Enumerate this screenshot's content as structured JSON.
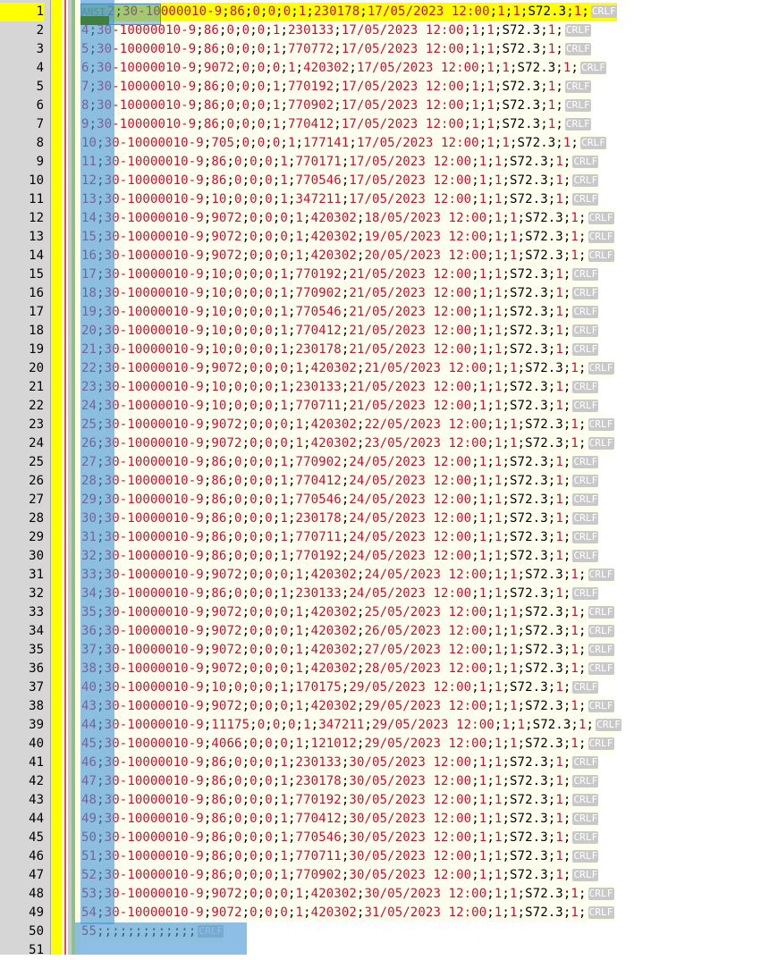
{
  "editor": {
    "eol_marker": "CRLF",
    "current_line": 1,
    "first_line_prefix": "ANSI"
  },
  "gutter": {
    "extra_line_number": "51"
  },
  "lines": [
    {
      "n": "1",
      "text": "2;30-10000010-9;86;0;0;0;1;230178;17/05/2023 12:00;1;1;S72.3;1;"
    },
    {
      "n": "2",
      "text": "4;30-10000010-9;86;0;0;0;1;230133;17/05/2023 12:00;1;1;S72.3;1;"
    },
    {
      "n": "3",
      "text": "5;30-10000010-9;86;0;0;0;1;770772;17/05/2023 12:00;1;1;S72.3;1;"
    },
    {
      "n": "4",
      "text": "6;30-10000010-9;9072;0;0;0;1;420302;17/05/2023 12:00;1;1;S72.3;1;"
    },
    {
      "n": "5",
      "text": "7;30-10000010-9;86;0;0;0;1;770192;17/05/2023 12:00;1;1;S72.3;1;"
    },
    {
      "n": "6",
      "text": "8;30-10000010-9;86;0;0;0;1;770902;17/05/2023 12:00;1;1;S72.3;1;"
    },
    {
      "n": "7",
      "text": "9;30-10000010-9;86;0;0;0;1;770412;17/05/2023 12:00;1;1;S72.3;1;"
    },
    {
      "n": "8",
      "text": "10;30-10000010-9;705;0;0;0;1;177141;17/05/2023 12:00;1;1;S72.3;1;"
    },
    {
      "n": "9",
      "text": "11;30-10000010-9;86;0;0;0;1;770171;17/05/2023 12:00;1;1;S72.3;1;"
    },
    {
      "n": "10",
      "text": "12;30-10000010-9;86;0;0;0;1;770546;17/05/2023 12:00;1;1;S72.3;1;"
    },
    {
      "n": "11",
      "text": "13;30-10000010-9;10;0;0;0;1;347211;17/05/2023 12:00;1;1;S72.3;1;"
    },
    {
      "n": "12",
      "text": "14;30-10000010-9;9072;0;0;0;1;420302;18/05/2023 12:00;1;1;S72.3;1;"
    },
    {
      "n": "13",
      "text": "15;30-10000010-9;9072;0;0;0;1;420302;19/05/2023 12:00;1;1;S72.3;1;"
    },
    {
      "n": "14",
      "text": "16;30-10000010-9;9072;0;0;0;1;420302;20/05/2023 12:00;1;1;S72.3;1;"
    },
    {
      "n": "15",
      "text": "17;30-10000010-9;10;0;0;0;1;770192;21/05/2023 12:00;1;1;S72.3;1;"
    },
    {
      "n": "16",
      "text": "18;30-10000010-9;10;0;0;0;1;770902;21/05/2023 12:00;1;1;S72.3;1;"
    },
    {
      "n": "17",
      "text": "19;30-10000010-9;10;0;0;0;1;770546;21/05/2023 12:00;1;1;S72.3;1;"
    },
    {
      "n": "18",
      "text": "20;30-10000010-9;10;0;0;0;1;770412;21/05/2023 12:00;1;1;S72.3;1;"
    },
    {
      "n": "19",
      "text": "21;30-10000010-9;10;0;0;0;1;230178;21/05/2023 12:00;1;1;S72.3;1;"
    },
    {
      "n": "20",
      "text": "22;30-10000010-9;9072;0;0;0;1;420302;21/05/2023 12:00;1;1;S72.3;1;"
    },
    {
      "n": "21",
      "text": "23;30-10000010-9;10;0;0;0;1;230133;21/05/2023 12:00;1;1;S72.3;1;"
    },
    {
      "n": "22",
      "text": "24;30-10000010-9;10;0;0;0;1;770711;21/05/2023 12:00;1;1;S72.3;1;"
    },
    {
      "n": "23",
      "text": "25;30-10000010-9;9072;0;0;0;1;420302;22/05/2023 12:00;1;1;S72.3;1;"
    },
    {
      "n": "24",
      "text": "26;30-10000010-9;9072;0;0;0;1;420302;23/05/2023 12:00;1;1;S72.3;1;"
    },
    {
      "n": "25",
      "text": "27;30-10000010-9;86;0;0;0;1;770902;24/05/2023 12:00;1;1;S72.3;1;"
    },
    {
      "n": "26",
      "text": "28;30-10000010-9;86;0;0;0;1;770412;24/05/2023 12:00;1;1;S72.3;1;"
    },
    {
      "n": "27",
      "text": "29;30-10000010-9;86;0;0;0;1;770546;24/05/2023 12:00;1;1;S72.3;1;"
    },
    {
      "n": "28",
      "text": "30;30-10000010-9;86;0;0;0;1;230178;24/05/2023 12:00;1;1;S72.3;1;"
    },
    {
      "n": "29",
      "text": "31;30-10000010-9;86;0;0;0;1;770711;24/05/2023 12:00;1;1;S72.3;1;"
    },
    {
      "n": "30",
      "text": "32;30-10000010-9;86;0;0;0;1;770192;24/05/2023 12:00;1;1;S72.3;1;"
    },
    {
      "n": "31",
      "text": "33;30-10000010-9;9072;0;0;0;1;420302;24/05/2023 12:00;1;1;S72.3;1;"
    },
    {
      "n": "32",
      "text": "34;30-10000010-9;86;0;0;0;1;230133;24/05/2023 12:00;1;1;S72.3;1;"
    },
    {
      "n": "33",
      "text": "35;30-10000010-9;9072;0;0;0;1;420302;25/05/2023 12:00;1;1;S72.3;1;"
    },
    {
      "n": "34",
      "text": "36;30-10000010-9;9072;0;0;0;1;420302;26/05/2023 12:00;1;1;S72.3;1;"
    },
    {
      "n": "35",
      "text": "37;30-10000010-9;9072;0;0;0;1;420302;27/05/2023 12:00;1;1;S72.3;1;"
    },
    {
      "n": "36",
      "text": "38;30-10000010-9;9072;0;0;0;1;420302;28/05/2023 12:00;1;1;S72.3;1;"
    },
    {
      "n": "37",
      "text": "40;30-10000010-9;10;0;0;0;1;170175;29/05/2023 12:00;1;1;S72.3;1;"
    },
    {
      "n": "38",
      "text": "43;30-10000010-9;9072;0;0;0;1;420302;29/05/2023 12:00;1;1;S72.3;1;"
    },
    {
      "n": "39",
      "text": "44;30-10000010-9;11175;0;0;0;1;347211;29/05/2023 12:00;1;1;S72.3;1;"
    },
    {
      "n": "40",
      "text": "45;30-10000010-9;4066;0;0;0;1;121012;29/05/2023 12:00;1;1;S72.3;1;"
    },
    {
      "n": "41",
      "text": "46;30-10000010-9;86;0;0;0;1;230133;30/05/2023 12:00;1;1;S72.3;1;"
    },
    {
      "n": "42",
      "text": "47;30-10000010-9;86;0;0;0;1;230178;30/05/2023 12:00;1;1;S72.3;1;"
    },
    {
      "n": "43",
      "text": "48;30-10000010-9;86;0;0;0;1;770192;30/05/2023 12:00;1;1;S72.3;1;"
    },
    {
      "n": "44",
      "text": "49;30-10000010-9;86;0;0;0;1;770412;30/05/2023 12:00;1;1;S72.3;1;"
    },
    {
      "n": "45",
      "text": "50;30-10000010-9;86;0;0;0;1;770546;30/05/2023 12:00;1;1;S72.3;1;"
    },
    {
      "n": "46",
      "text": "51;30-10000010-9;86;0;0;0;1;770711;30/05/2023 12:00;1;1;S72.3;1;"
    },
    {
      "n": "47",
      "text": "52;30-10000010-9;86;0;0;0;1;770902;30/05/2023 12:00;1;1;S72.3;1;"
    },
    {
      "n": "48",
      "text": "53;30-10000010-9;9072;0;0;0;1;420302;30/05/2023 12:00;1;1;S72.3;1;"
    },
    {
      "n": "49",
      "text": "54;30-10000010-9;9072;0;0;0;1;420302;31/05/2023 12:00;1;1;S72.3;1;"
    },
    {
      "n": "50",
      "text": "55;;;;;;;;;;;;;"
    }
  ]
}
